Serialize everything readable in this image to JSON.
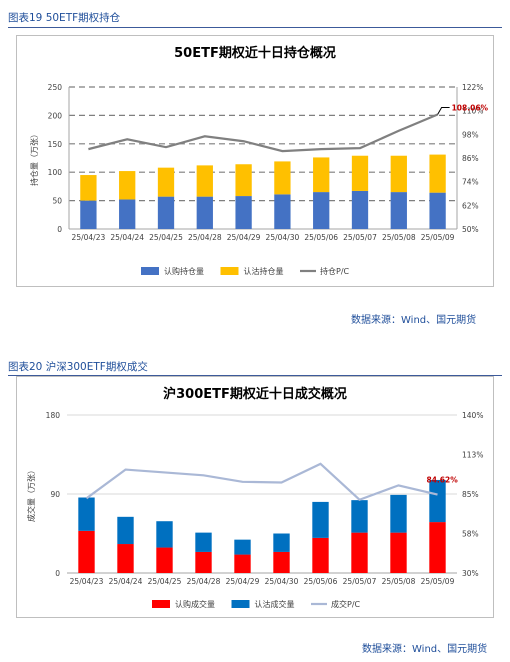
{
  "figure1": {
    "caption": "图表19 50ETF期权持仓",
    "source": "数据来源：Wind、国元期货",
    "chart_data": {
      "type": "bar",
      "title": "50ETF期权近十日持仓概况",
      "ylabel": "持仓量（万张）",
      "categories": [
        "25/04/23",
        "25/04/24",
        "25/04/25",
        "25/04/28",
        "25/04/29",
        "25/04/30",
        "25/05/06",
        "25/05/07",
        "25/05/08",
        "25/05/09"
      ],
      "series": [
        {
          "name": "认购持仓量",
          "color": "#4472c4",
          "values": [
            50,
            52,
            57,
            57,
            58,
            61,
            65,
            67,
            65,
            64
          ]
        },
        {
          "name": "认沽持仓量",
          "color": "#ffc000",
          "values": [
            45,
            50,
            51,
            55,
            56,
            58,
            61,
            62,
            64,
            67
          ]
        },
        {
          "name": "持仓P/C",
          "color": "#808080",
          "type": "line",
          "axis": "right",
          "values": [
            90.5,
            95.5,
            91.5,
            97,
            94.5,
            89.5,
            90.5,
            91,
            99.8,
            108.06
          ]
        }
      ],
      "ylim": [
        0,
        250
      ],
      "yticks": [
        "0",
        "50",
        "100",
        "150",
        "200",
        "250"
      ],
      "y2lim": [
        50,
        122
      ],
      "y2ticks": [
        "50%",
        "62%",
        "74%",
        "86%",
        "98%",
        "110%",
        "122%"
      ],
      "annotation": "108.06%",
      "grid": "dashed",
      "legend": "bottom"
    }
  },
  "figure2": {
    "caption": "图表20 沪深300ETF期权成交",
    "source": "数据来源：Wind、国元期货",
    "chart_data": {
      "type": "bar",
      "title": "沪300ETF期权近十日成交概况",
      "ylabel": "成交量（万张）",
      "categories": [
        "25/04/23",
        "25/04/24",
        "25/04/25",
        "25/04/28",
        "25/04/29",
        "25/04/30",
        "25/05/06",
        "25/05/07",
        "25/05/08",
        "25/05/09"
      ],
      "series": [
        {
          "name": "认购成交量",
          "color": "#ff0000",
          "values": [
            48,
            33,
            29,
            24,
            21,
            24,
            40,
            46,
            46,
            58
          ]
        },
        {
          "name": "认沽成交量",
          "color": "#0070c0",
          "values": [
            38,
            31,
            30,
            22,
            17,
            21,
            41,
            37,
            43,
            48
          ]
        },
        {
          "name": "成交P/C",
          "color": "#aab8d6",
          "type": "line",
          "axis": "right",
          "values": [
            82,
            102,
            100,
            98,
            93.5,
            93,
            106,
            81,
            91,
            84.62
          ]
        }
      ],
      "ylim": [
        0,
        180
      ],
      "yticks": [
        "0",
        "90",
        "180"
      ],
      "y2lim": [
        30,
        140
      ],
      "y2ticks": [
        "30%",
        "58%",
        "85%",
        "113%",
        "140%"
      ],
      "annotation": "84.62%",
      "grid": "solid",
      "legend": "bottom"
    }
  }
}
